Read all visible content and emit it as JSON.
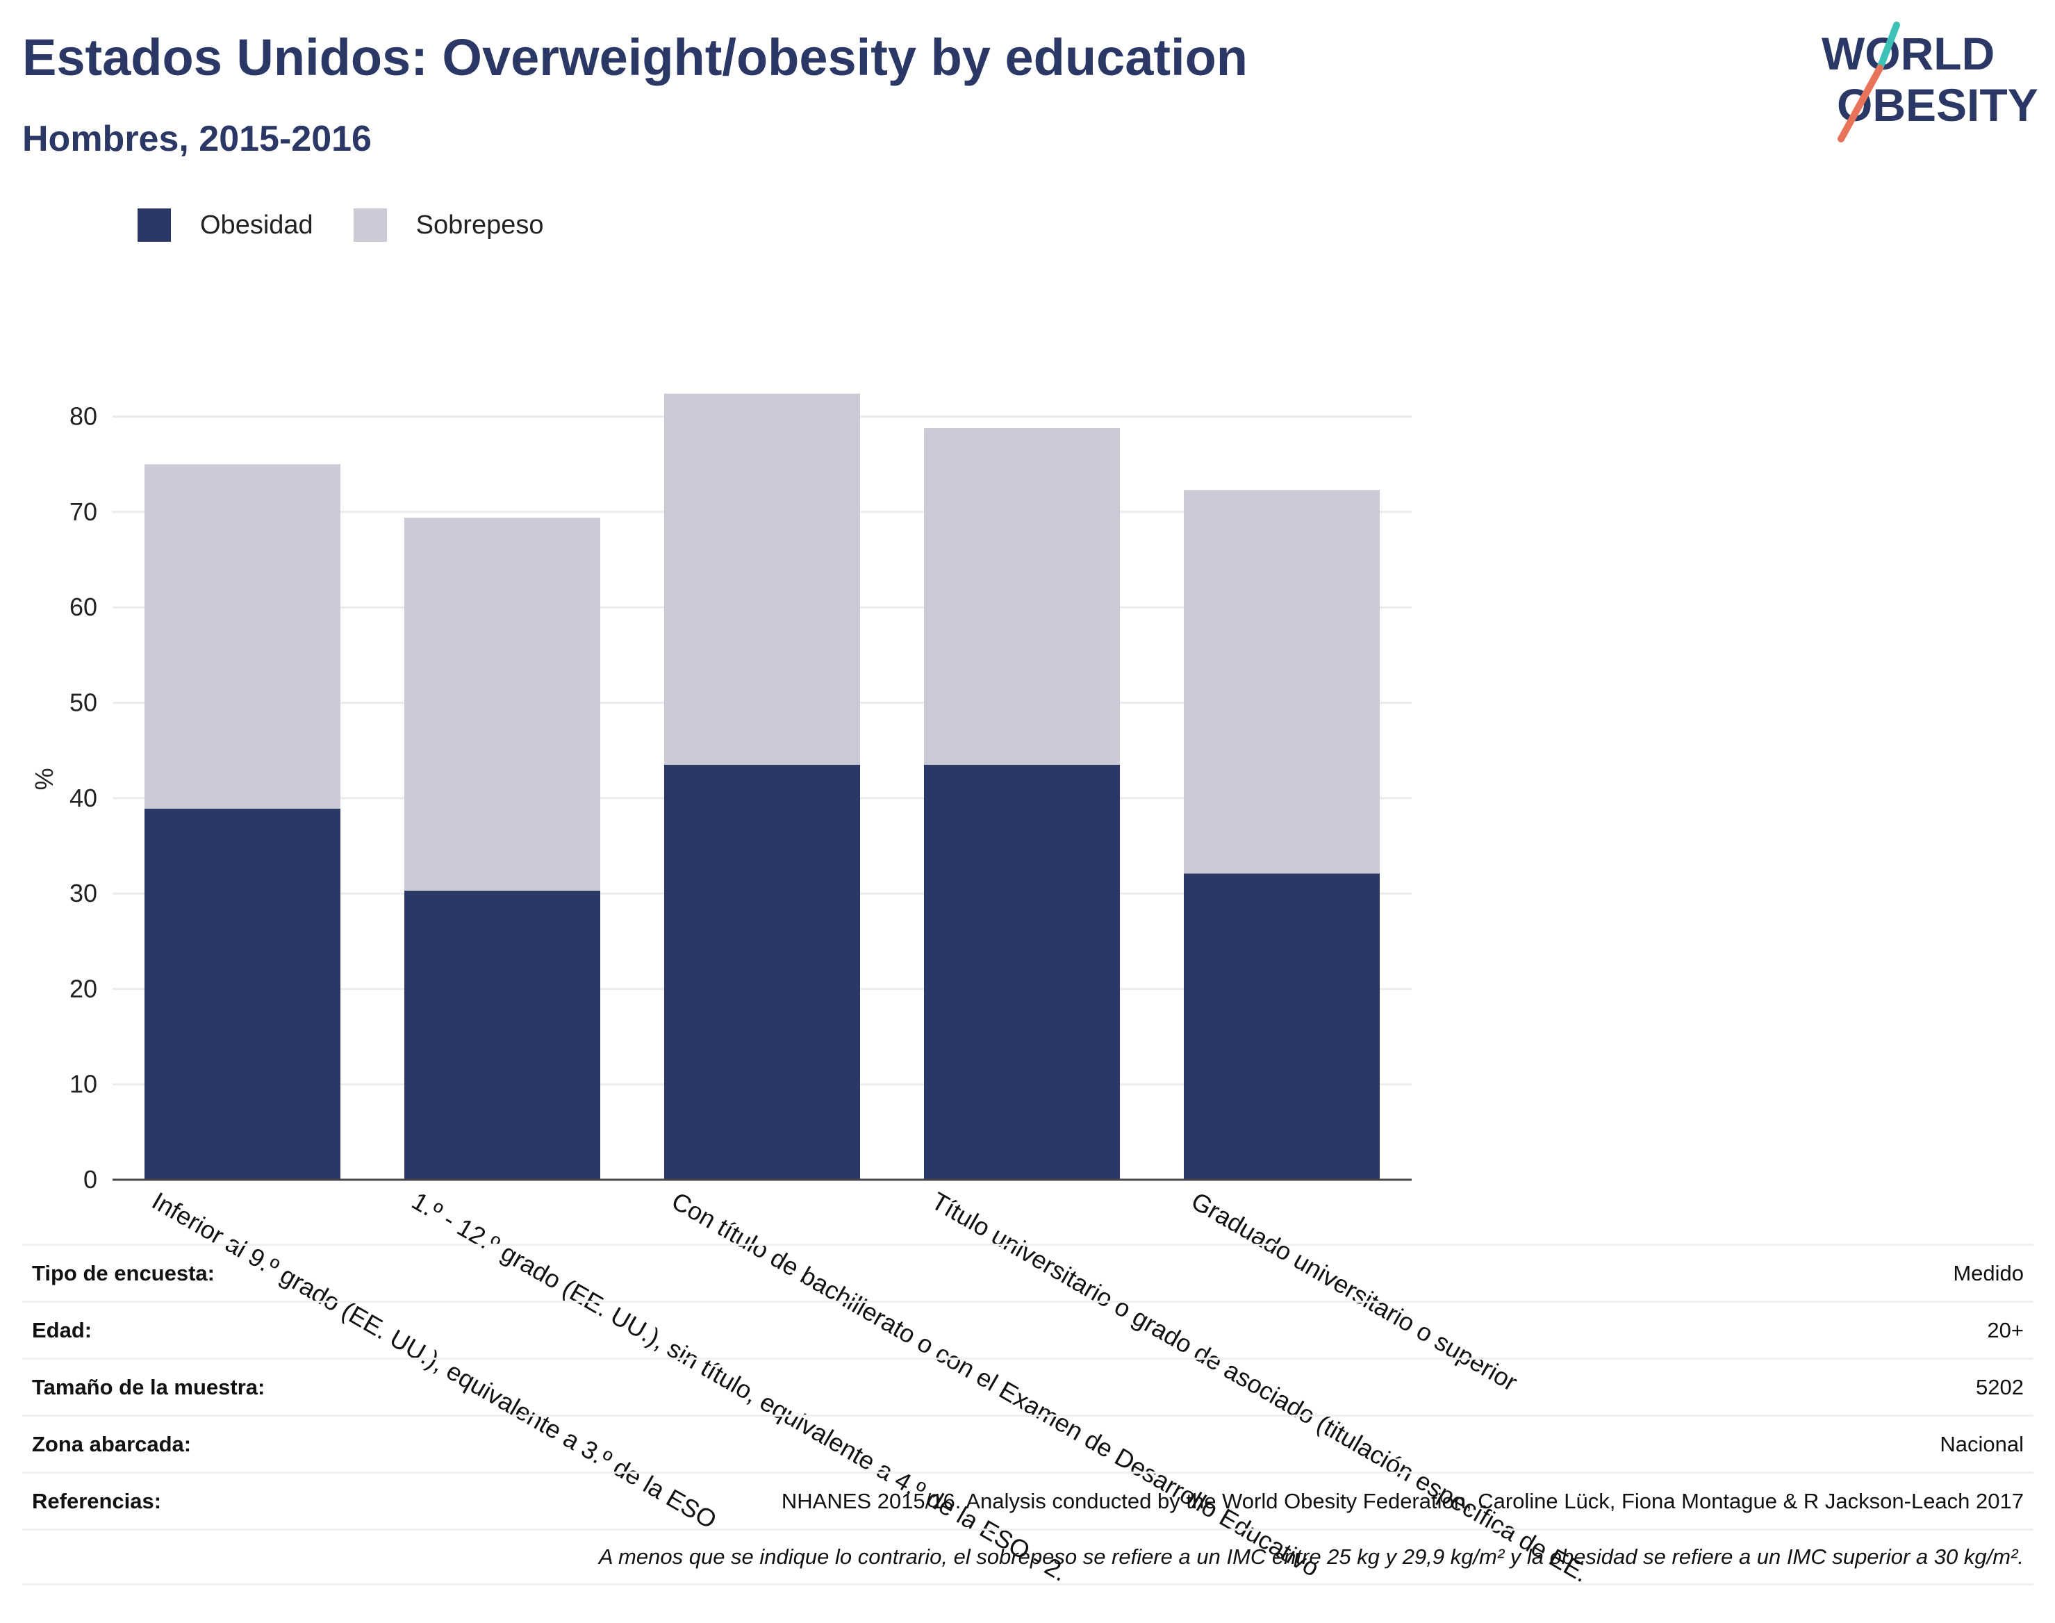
{
  "header": {
    "title": "Estados Unidos: Overweight/obesity by education",
    "subtitle": "Hombres, 2015-2016"
  },
  "logo": {
    "line1": "WORLD",
    "line2": "OBESITY",
    "colors": {
      "text": "#2b3866",
      "slash_top": "#3ec1b6",
      "slash_bottom": "#e8735a"
    }
  },
  "legend": [
    {
      "label": "Obesidad",
      "color": "#2b3866"
    },
    {
      "label": "Sobrepeso",
      "color": "#cacbd6"
    }
  ],
  "chart_data": {
    "type": "bar",
    "stacked": true,
    "categories": [
      "Inferior al 9.º grado (EE. UU.), equivalente a 3.º de la ESO",
      "1.º - 12.º grado (EE. UU.), sin título, equivalente a 4.º de la ESO - 2.",
      "Con título de bachillerato o con el Examen de Desarrollo Educativo",
      "Título universitario o grado de asociado (titulación específica de EE.",
      "Graduado universitario o superior"
    ],
    "series": [
      {
        "name": "Obesidad",
        "color": "#2b3866",
        "values": [
          38.9,
          30.3,
          43.5,
          43.5,
          32.1
        ]
      },
      {
        "name": "Sobrepeso",
        "color": "#cacbd6",
        "values": [
          36.1,
          39.1,
          38.9,
          35.3,
          40.2
        ]
      }
    ],
    "ylabel": "%",
    "ylim": [
      0,
      85
    ],
    "yticks": [
      0,
      10,
      20,
      30,
      40,
      50,
      60,
      70,
      80
    ],
    "grid": true,
    "legend_position": "top-left"
  },
  "info": [
    {
      "label": "Tipo de encuesta:",
      "value": "Medido"
    },
    {
      "label": "Edad:",
      "value": "20+"
    },
    {
      "label": "Tamaño de la muestra:",
      "value": "5202"
    },
    {
      "label": "Zona abarcada:",
      "value": "Nacional"
    },
    {
      "label": "Referencias:",
      "value": "NHANES 2015/16. Analysis conducted by the World Obesity Federation, Caroline Lück, Fiona Montague & R Jackson-Leach 2017"
    }
  ],
  "note": "A menos que se indique lo contrario, el sobrepeso se refiere a un IMC entre 25 kg y 29,9 kg/m² y la obesidad se refiere a un IMC superior a 30 kg/m²."
}
